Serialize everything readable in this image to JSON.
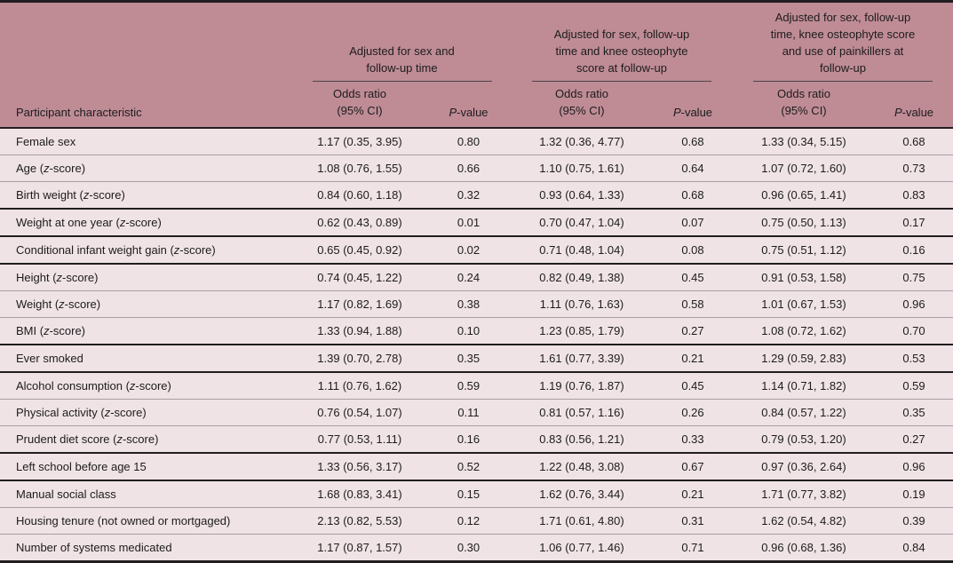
{
  "colors": {
    "header_bg": "#bf8c96",
    "body_bg": "#f0e3e6",
    "thin_rule": "#a89ea4",
    "thick_rule": "#211d20",
    "group_rule": "#4a4347",
    "text": "#1c1c1c"
  },
  "table": {
    "header": {
      "characteristic_label": "Participant characteristic",
      "or_label": "Odds ratio\n(95% CI)",
      "p_label_italic": "P",
      "p_label_rest": "-value",
      "groups": [
        {
          "label": "Adjusted for sex and\nfollow-up time"
        },
        {
          "label": "Adjusted for sex, follow-up\ntime and knee osteophyte\nscore at follow-up"
        },
        {
          "label": "Adjusted for sex, follow-up\ntime, knee osteophyte score\nand use of painkillers at\nfollow-up"
        }
      ]
    },
    "rows": [
      {
        "characteristic": [
          {
            "t": "Female sex"
          }
        ],
        "values": [
          "1.17 (0.35, 3.95)",
          "0.80",
          "1.32 (0.36, 4.77)",
          "0.68",
          "1.33 (0.34, 5.15)",
          "0.68"
        ],
        "thick": false
      },
      {
        "characteristic": [
          {
            "t": "Age ("
          },
          {
            "t": "z",
            "i": true
          },
          {
            "t": "-score)"
          }
        ],
        "values": [
          "1.08 (0.76, 1.55)",
          "0.66",
          "1.10 (0.75, 1.61)",
          "0.64",
          "1.07 (0.72, 1.60)",
          "0.73"
        ],
        "thick": false
      },
      {
        "characteristic": [
          {
            "t": "Birth weight ("
          },
          {
            "t": "z",
            "i": true
          },
          {
            "t": "-score)"
          }
        ],
        "values": [
          "0.84 (0.60, 1.18)",
          "0.32",
          "0.93 (0.64, 1.33)",
          "0.68",
          "0.96 (0.65, 1.41)",
          "0.83"
        ],
        "thick": true
      },
      {
        "characteristic": [
          {
            "t": "Weight at one year ("
          },
          {
            "t": "z",
            "i": true
          },
          {
            "t": "-score)"
          }
        ],
        "values": [
          "0.62 (0.43, 0.89)",
          "0.01",
          "0.70 (0.47, 1.04)",
          "0.07",
          "0.75 (0.50, 1.13)",
          "0.17"
        ],
        "thick": true
      },
      {
        "characteristic": [
          {
            "t": "Conditional infant weight gain ("
          },
          {
            "t": "z",
            "i": true
          },
          {
            "t": "-score)"
          }
        ],
        "values": [
          "0.65 (0.45, 0.92)",
          "0.02",
          "0.71 (0.48, 1.04)",
          "0.08",
          "0.75 (0.51, 1.12)",
          "0.16"
        ],
        "thick": true
      },
      {
        "characteristic": [
          {
            "t": "Height ("
          },
          {
            "t": "z",
            "i": true
          },
          {
            "t": "-score)"
          }
        ],
        "values": [
          "0.74 (0.45, 1.22)",
          "0.24",
          "0.82 (0.49, 1.38)",
          "0.45",
          "0.91 (0.53, 1.58)",
          "0.75"
        ],
        "thick": false
      },
      {
        "characteristic": [
          {
            "t": "Weight ("
          },
          {
            "t": "z",
            "i": true
          },
          {
            "t": "-score)"
          }
        ],
        "values": [
          "1.17 (0.82, 1.69)",
          "0.38",
          "1.11 (0.76, 1.63)",
          "0.58",
          "1.01 (0.67, 1.53)",
          "0.96"
        ],
        "thick": false
      },
      {
        "characteristic": [
          {
            "t": "BMI ("
          },
          {
            "t": "z",
            "i": true
          },
          {
            "t": "-score)"
          }
        ],
        "values": [
          "1.33 (0.94, 1.88)",
          "0.10",
          "1.23 (0.85, 1.79)",
          "0.27",
          "1.08 (0.72, 1.62)",
          "0.70"
        ],
        "thick": true
      },
      {
        "characteristic": [
          {
            "t": "Ever smoked"
          }
        ],
        "values": [
          "1.39 (0.70, 2.78)",
          "0.35",
          "1.61 (0.77, 3.39)",
          "0.21",
          "1.29 (0.59, 2.83)",
          "0.53"
        ],
        "thick": true
      },
      {
        "characteristic": [
          {
            "t": "Alcohol consumption ("
          },
          {
            "t": "z",
            "i": true
          },
          {
            "t": "-score)"
          }
        ],
        "values": [
          "1.11 (0.76, 1.62)",
          "0.59",
          "1.19 (0.76, 1.87)",
          "0.45",
          "1.14 (0.71, 1.82)",
          "0.59"
        ],
        "thick": false
      },
      {
        "characteristic": [
          {
            "t": "Physical activity ("
          },
          {
            "t": "z",
            "i": true
          },
          {
            "t": "-score)"
          }
        ],
        "values": [
          "0.76 (0.54, 1.07)",
          "0.11",
          "0.81 (0.57, 1.16)",
          "0.26",
          "0.84 (0.57, 1.22)",
          "0.35"
        ],
        "thick": false
      },
      {
        "characteristic": [
          {
            "t": "Prudent diet score ("
          },
          {
            "t": "z",
            "i": true
          },
          {
            "t": "-score)"
          }
        ],
        "values": [
          "0.77 (0.53, 1.11)",
          "0.16",
          "0.83 (0.56, 1.21)",
          "0.33",
          "0.79 (0.53, 1.20)",
          "0.27"
        ],
        "thick": true
      },
      {
        "characteristic": [
          {
            "t": "Left school before age 15"
          }
        ],
        "values": [
          "1.33 (0.56, 3.17)",
          "0.52",
          "1.22 (0.48, 3.08)",
          "0.67",
          "0.97 (0.36, 2.64)",
          "0.96"
        ],
        "thick": true
      },
      {
        "characteristic": [
          {
            "t": "Manual social class"
          }
        ],
        "values": [
          "1.68 (0.83, 3.41)",
          "0.15",
          "1.62 (0.76, 3.44)",
          "0.21",
          "1.71 (0.77, 3.82)",
          "0.19"
        ],
        "thick": false
      },
      {
        "characteristic": [
          {
            "t": "Housing tenure (not owned or mortgaged)"
          }
        ],
        "values": [
          "2.13 (0.82, 5.53)",
          "0.12",
          "1.71 (0.61, 4.80)",
          "0.31",
          "1.62 (0.54, 4.82)",
          "0.39"
        ],
        "thick": false
      },
      {
        "characteristic": [
          {
            "t": "Number of systems medicated"
          }
        ],
        "values": [
          "1.17 (0.87, 1.57)",
          "0.30",
          "1.06 (0.77, 1.46)",
          "0.71",
          "0.96 (0.68, 1.36)",
          "0.84"
        ],
        "thick": false
      }
    ]
  }
}
